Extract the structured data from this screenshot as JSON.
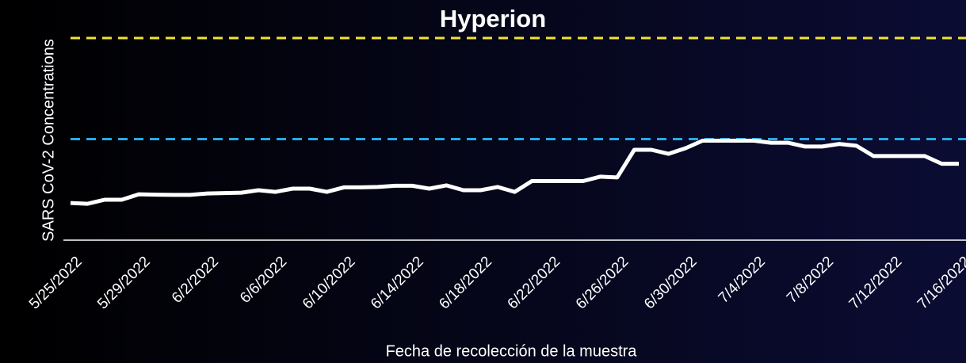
{
  "chart_data": {
    "type": "line",
    "title": "Hyperion",
    "y_label": "SARS CoV-2 Concentrations",
    "x_label": "Fecha de recolección de la muestra",
    "categories": [
      "5/25/2022",
      null,
      null,
      null,
      "5/29/2022",
      null,
      null,
      null,
      "6/2/2022",
      null,
      null,
      null,
      "6/6/2022",
      null,
      null,
      null,
      "6/10/2022",
      null,
      null,
      null,
      "6/14/2022",
      null,
      null,
      null,
      "6/18/2022",
      null,
      null,
      null,
      "6/22/2022",
      null,
      null,
      null,
      "6/26/2022",
      null,
      null,
      null,
      "6/30/2022",
      null,
      null,
      null,
      "7/4/2022",
      null,
      null,
      null,
      "7/8/2022",
      null,
      null,
      null,
      "7/12/2022",
      null,
      null,
      null,
      "7/16/2022"
    ],
    "series": [
      {
        "color": "#ffffff",
        "values": [
          18.4,
          18.0,
          20.0,
          20.0,
          22.7,
          22.5,
          22.4,
          22.4,
          23.1,
          23.3,
          23.5,
          24.7,
          23.9,
          25.5,
          25.5,
          23.9,
          26.1,
          26.1,
          26.3,
          26.9,
          26.9,
          25.5,
          27.1,
          24.7,
          24.7,
          26.3,
          23.9,
          29.2,
          29.2,
          29.2,
          29.2,
          31.4,
          31.0,
          44.7,
          44.7,
          42.7,
          45.5,
          49.2,
          49.2,
          49.2,
          49.2,
          48.2,
          48.2,
          46.3,
          46.3,
          47.6,
          46.7,
          41.6,
          41.6,
          41.6,
          41.6,
          37.8,
          37.8
        ]
      }
    ],
    "reference_lines": [
      {
        "value": 100,
        "color": "#f2e52c"
      },
      {
        "value": 50,
        "color": "#2aa9e3"
      }
    ],
    "ylim": [
      0,
      100
    ]
  }
}
